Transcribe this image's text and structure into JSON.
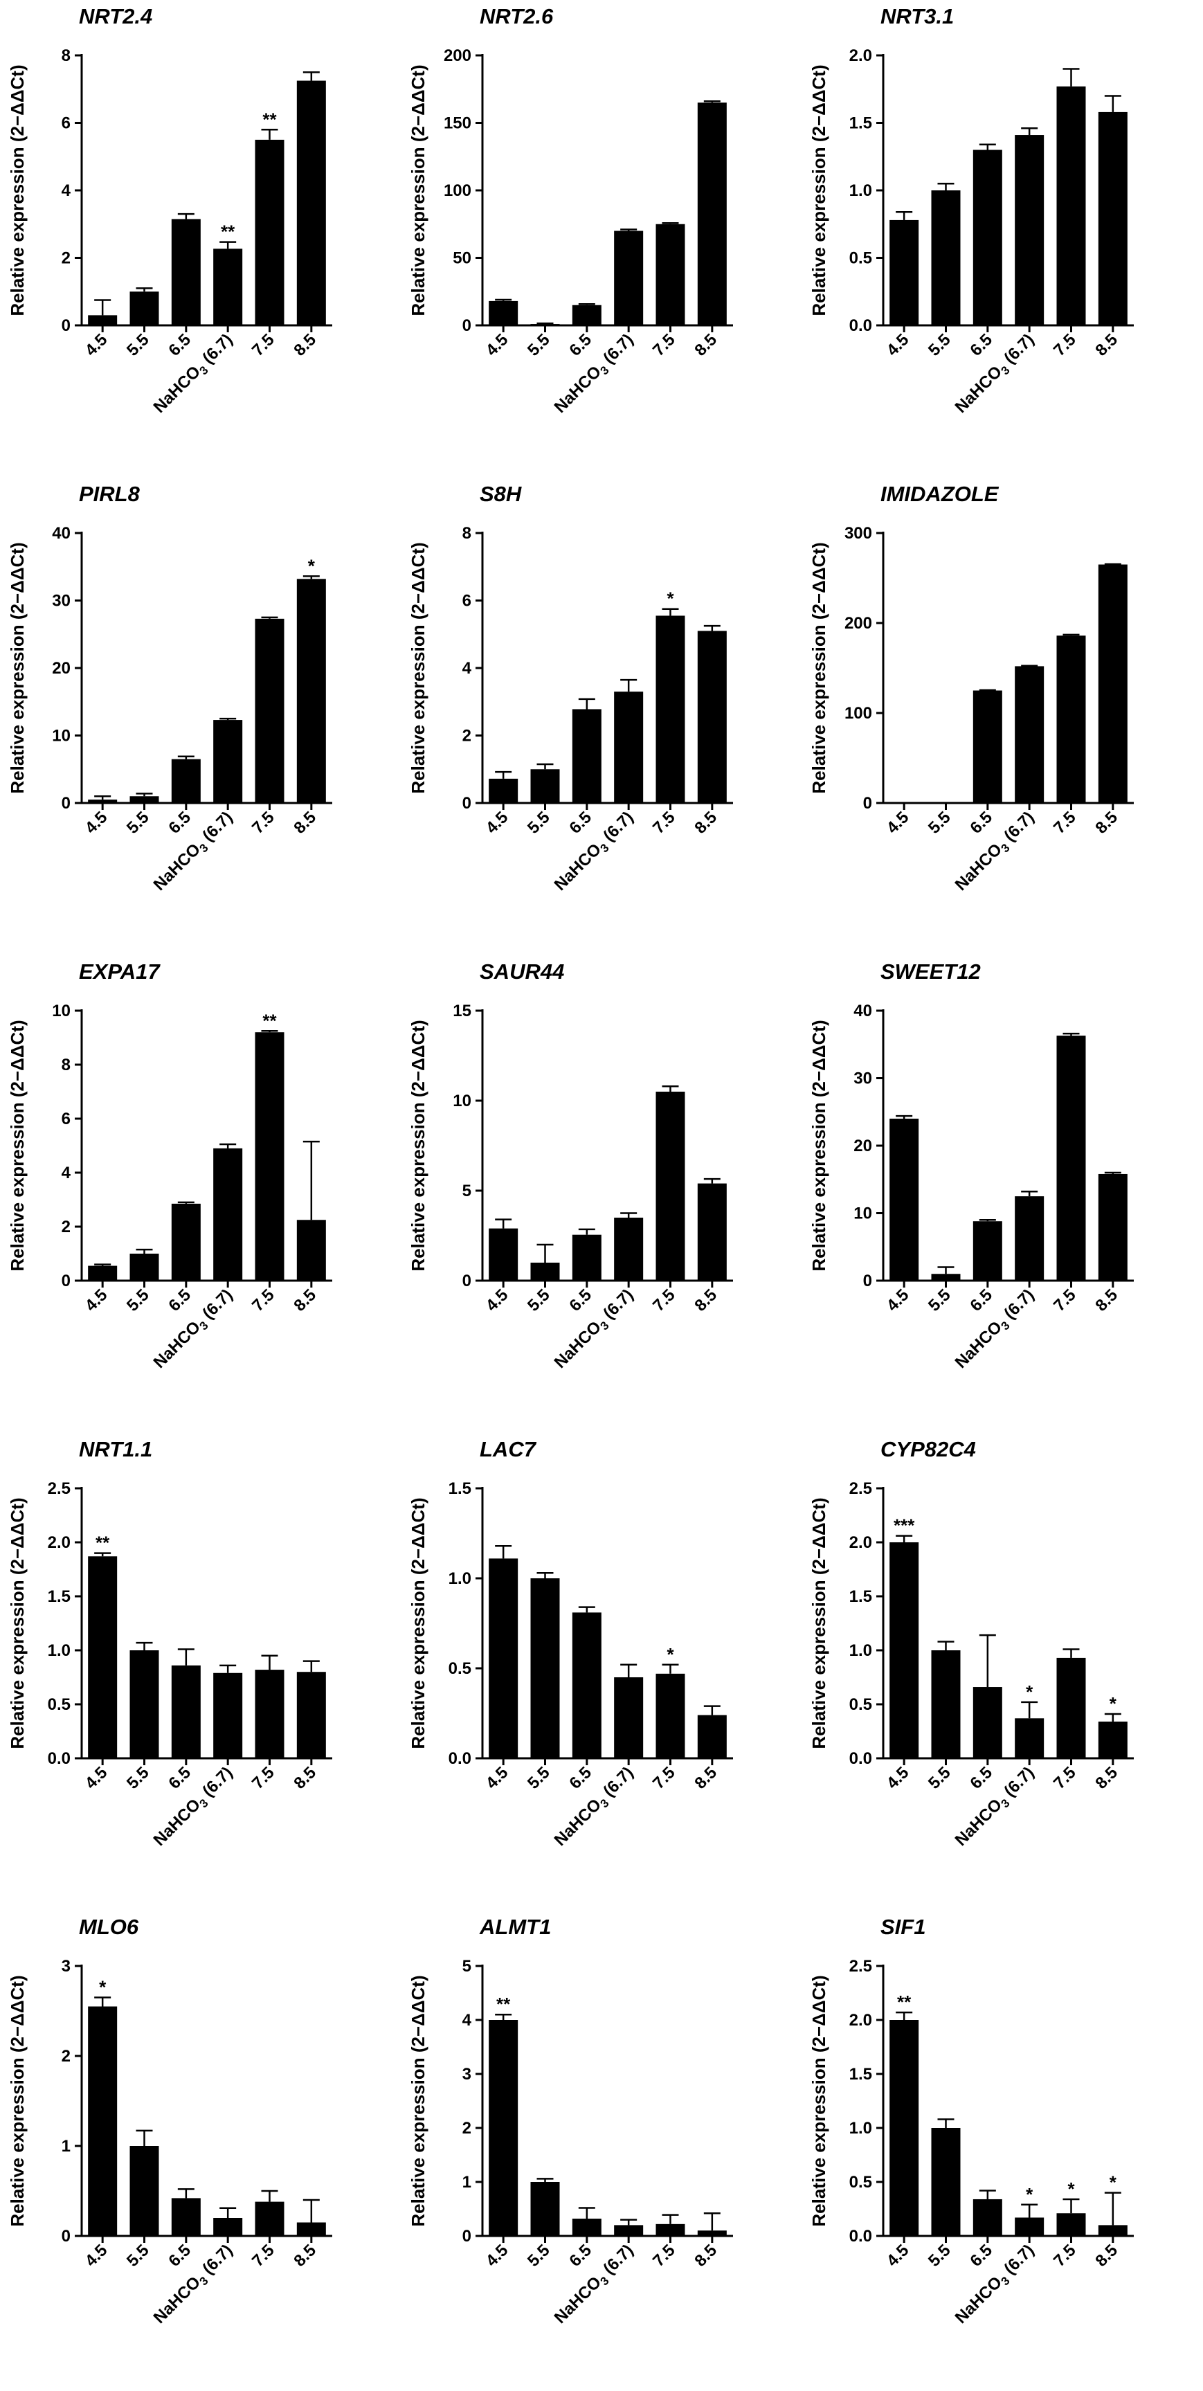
{
  "chart_data": [
    {
      "type": "bar",
      "title": "NRT2.4",
      "ylabel": "Relative expression (2−ΔΔCt)",
      "categories": [
        "4.5",
        "5.5",
        "6.5",
        "NaHCO3 (6.7)",
        "7.5",
        "8.5"
      ],
      "values": [
        0.3,
        1.0,
        3.15,
        2.27,
        5.5,
        7.25
      ],
      "errors": [
        0.45,
        0.1,
        0.15,
        0.2,
        0.3,
        0.25
      ],
      "annotations": [
        "",
        "",
        "",
        "**",
        "**",
        ""
      ],
      "ylim": [
        0,
        8
      ],
      "yticks": [
        "0",
        "2",
        "4",
        "6",
        "8"
      ],
      "show_xlabels": true
    },
    {
      "type": "bar",
      "title": "NRT2.6",
      "ylabel": "Relative expression (2−ΔΔCt)",
      "categories": [
        "4.5",
        "5.5",
        "6.5",
        "NaHCO3 (6.7)",
        "7.5",
        "8.5"
      ],
      "values": [
        18,
        1,
        15,
        70,
        75,
        165
      ],
      "errors": [
        1,
        0.5,
        0.8,
        1,
        0.8,
        1
      ],
      "annotations": [
        "",
        "",
        "",
        "",
        "",
        ""
      ],
      "ylim": [
        0,
        200
      ],
      "yticks": [
        "0",
        "50",
        "100",
        "150",
        "200"
      ],
      "show_xlabels": true
    },
    {
      "type": "bar",
      "title": "NRT3.1",
      "ylabel": "Relative expression (2−ΔΔCt)",
      "categories": [
        "4.5",
        "5.5",
        "6.5",
        "NaHCO3 (6.7)",
        "7.5",
        "8.5"
      ],
      "values": [
        0.78,
        1.0,
        1.3,
        1.41,
        1.77,
        1.58
      ],
      "errors": [
        0.06,
        0.05,
        0.04,
        0.05,
        0.13,
        0.12
      ],
      "annotations": [
        "",
        "",
        "",
        "",
        "",
        ""
      ],
      "ylim": [
        0,
        2
      ],
      "yticks": [
        "0.0",
        "0.5",
        "1.0",
        "1.5",
        "2.0"
      ],
      "show_xlabels": true
    },
    {
      "type": "bar",
      "title": "PIRL8",
      "ylabel": "Relative expression (2−ΔΔCt)",
      "categories": [
        "4.5",
        "5.5",
        "6.5",
        "NaHCO3 (6.7)",
        "7.5",
        "8.5"
      ],
      "values": [
        0.5,
        1.0,
        6.5,
        12.3,
        27.3,
        33.2
      ],
      "errors": [
        0.5,
        0.4,
        0.4,
        0.2,
        0.2,
        0.4
      ],
      "annotations": [
        "",
        "",
        "",
        "",
        "",
        "*"
      ],
      "ylim": [
        0,
        40
      ],
      "yticks": [
        "0",
        "10",
        "20",
        "30",
        "40"
      ],
      "show_xlabels": true
    },
    {
      "type": "bar",
      "title": "S8H",
      "ylabel": "Relative expression (2−ΔΔCt)",
      "categories": [
        "4.5",
        "5.5",
        "6.5",
        "NaHCO3 (6.7)",
        "7.5",
        "8.5"
      ],
      "values": [
        0.72,
        1.0,
        2.78,
        3.3,
        5.55,
        5.1
      ],
      "errors": [
        0.2,
        0.15,
        0.3,
        0.35,
        0.2,
        0.15
      ],
      "annotations": [
        "",
        "",
        "",
        "",
        "*",
        ""
      ],
      "ylim": [
        0,
        8
      ],
      "yticks": [
        "0",
        "2",
        "4",
        "6",
        "8"
      ],
      "show_xlabels": true
    },
    {
      "type": "bar",
      "title": "IMIDAZOLE",
      "ylabel": "Relative expression (2−ΔΔCt)",
      "categories": [
        "4.5",
        "5.5",
        "6.5",
        "NaHCO3 (6.7)",
        "7.5",
        "8.5"
      ],
      "values": [
        0,
        1,
        125,
        152,
        186,
        265
      ],
      "errors": [
        0,
        0,
        0.5,
        0.5,
        1,
        0.5
      ],
      "annotations": [
        "",
        "",
        "",
        "",
        "",
        ""
      ],
      "ylim": [
        0,
        300
      ],
      "yticks": [
        "0",
        "100",
        "200",
        "300"
      ],
      "show_xlabels": true
    },
    {
      "type": "bar",
      "title": "EXPA17",
      "ylabel": "Relative expression (2−ΔΔCt)",
      "categories": [
        "4.5",
        "5.5",
        "6.5",
        "NaHCO3 (6.7)",
        "7.5",
        "8.5"
      ],
      "values": [
        0.55,
        1.0,
        2.85,
        4.9,
        9.2,
        2.25
      ],
      "errors": [
        0.05,
        0.15,
        0.05,
        0.15,
        0.05,
        2.9
      ],
      "annotations": [
        "",
        "",
        "",
        "",
        "**",
        ""
      ],
      "ylim": [
        0,
        10
      ],
      "yticks": [
        "0",
        "2",
        "4",
        "6",
        "8",
        "10"
      ],
      "show_xlabels": true
    },
    {
      "type": "bar",
      "title": "SAUR44",
      "ylabel": "Relative expression (2−ΔΔCt)",
      "categories": [
        "4.5",
        "5.5",
        "6.5",
        "NaHCO3 (6.7)",
        "7.5",
        "8.5"
      ],
      "values": [
        2.9,
        1.0,
        2.55,
        3.5,
        10.5,
        5.4
      ],
      "errors": [
        0.5,
        1.0,
        0.3,
        0.25,
        0.3,
        0.25
      ],
      "annotations": [
        "",
        "",
        "",
        "",
        "",
        ""
      ],
      "ylim": [
        0,
        15
      ],
      "yticks": [
        "0",
        "5",
        "10",
        "15"
      ],
      "show_xlabels": true
    },
    {
      "type": "bar",
      "title": "SWEET12",
      "ylabel": "Relative expression (2−ΔΔCt)",
      "categories": [
        "4.5",
        "5.5",
        "6.5",
        "NaHCO3 (6.7)",
        "7.5",
        "8.5"
      ],
      "values": [
        24,
        1,
        8.8,
        12.5,
        36.3,
        15.8
      ],
      "errors": [
        0.4,
        1.0,
        0.2,
        0.7,
        0.3,
        0.2
      ],
      "annotations": [
        "",
        "",
        "",
        "",
        "",
        ""
      ],
      "ylim": [
        0,
        40
      ],
      "yticks": [
        "0",
        "10",
        "20",
        "30",
        "40"
      ],
      "show_xlabels": true
    },
    {
      "type": "bar",
      "title": "NRT1.1",
      "ylabel": "Relative expression (2−ΔΔCt)",
      "categories": [
        "4.5",
        "5.5",
        "6.5",
        "NaHCO3 (6.7)",
        "7.5",
        "8.5"
      ],
      "values": [
        1.87,
        1.0,
        0.86,
        0.79,
        0.82,
        0.8
      ],
      "errors": [
        0.03,
        0.07,
        0.15,
        0.07,
        0.13,
        0.1
      ],
      "annotations": [
        "**",
        "",
        "",
        "",
        "",
        ""
      ],
      "ylim": [
        0,
        2.5
      ],
      "yticks": [
        "0.0",
        "0.5",
        "1.0",
        "1.5",
        "2.0",
        "2.5"
      ],
      "show_xlabels": true
    },
    {
      "type": "bar",
      "title": "LAC7",
      "ylabel": "Relative expression (2−ΔΔCt)",
      "categories": [
        "4.5",
        "5.5",
        "6.5",
        "NaHCO3 (6.7)",
        "7.5",
        "8.5"
      ],
      "values": [
        1.11,
        1.0,
        0.81,
        0.45,
        0.47,
        0.24
      ],
      "errors": [
        0.07,
        0.03,
        0.03,
        0.07,
        0.05,
        0.05
      ],
      "annotations": [
        "",
        "",
        "",
        "",
        "*",
        ""
      ],
      "ylim": [
        0,
        1.5
      ],
      "yticks": [
        "0.0",
        "0.5",
        "1.0",
        "1.5"
      ],
      "show_xlabels": true
    },
    {
      "type": "bar",
      "title": "CYP82C4",
      "ylabel": "Relative expression (2−ΔΔCt)",
      "categories": [
        "4.5",
        "5.5",
        "6.5",
        "NaHCO3 (6.7)",
        "7.5",
        "8.5"
      ],
      "values": [
        2.0,
        1.0,
        0.66,
        0.37,
        0.93,
        0.34
      ],
      "errors": [
        0.06,
        0.08,
        0.48,
        0.15,
        0.08,
        0.07
      ],
      "annotations": [
        "***",
        "",
        "",
        "*",
        "",
        "*"
      ],
      "ylim": [
        0,
        2.5
      ],
      "yticks": [
        "0.0",
        "0.5",
        "1.0",
        "1.5",
        "2.0",
        "2.5"
      ],
      "show_xlabels": true
    },
    {
      "type": "bar",
      "title": "MLO6",
      "ylabel": "Relative expression (2−ΔΔCt)",
      "categories": [
        "4.5",
        "5.5",
        "6.5",
        "NaHCO3 (6.7)",
        "7.5",
        "8.5"
      ],
      "values": [
        2.55,
        1.0,
        0.42,
        0.2,
        0.38,
        0.15
      ],
      "errors": [
        0.1,
        0.17,
        0.1,
        0.11,
        0.12,
        0.25
      ],
      "annotations": [
        "*",
        "",
        "",
        "",
        "",
        ""
      ],
      "ylim": [
        0,
        3
      ],
      "yticks": [
        "0",
        "1",
        "2",
        "3"
      ],
      "show_xlabels": true
    },
    {
      "type": "bar",
      "title": "ALMT1",
      "ylabel": "Relative expression (2−ΔΔCt)",
      "categories": [
        "4.5",
        "5.5",
        "6.5",
        "NaHCO3 (6.7)",
        "7.5",
        "8.5"
      ],
      "values": [
        4.0,
        1.0,
        0.32,
        0.2,
        0.22,
        0.1
      ],
      "errors": [
        0.1,
        0.06,
        0.2,
        0.1,
        0.17,
        0.32
      ],
      "annotations": [
        "**",
        "",
        "",
        "",
        "",
        ""
      ],
      "ylim": [
        0,
        5
      ],
      "yticks": [
        "0",
        "1",
        "2",
        "3",
        "4",
        "5"
      ],
      "show_xlabels": true
    },
    {
      "type": "bar",
      "title": "SIF1",
      "ylabel": "Relative expression (2−ΔΔCt)",
      "categories": [
        "4.5",
        "5.5",
        "6.5",
        "NaHCO3 (6.7)",
        "7.5",
        "8.5"
      ],
      "values": [
        2.0,
        1.0,
        0.34,
        0.17,
        0.21,
        0.1
      ],
      "errors": [
        0.07,
        0.08,
        0.08,
        0.12,
        0.13,
        0.3
      ],
      "annotations": [
        "**",
        "",
        "",
        "*",
        "*",
        "*"
      ],
      "ylim": [
        0,
        2.5
      ],
      "yticks": [
        "0.0",
        "0.5",
        "1.0",
        "1.5",
        "2.0",
        "2.5"
      ],
      "show_xlabels": true
    }
  ]
}
